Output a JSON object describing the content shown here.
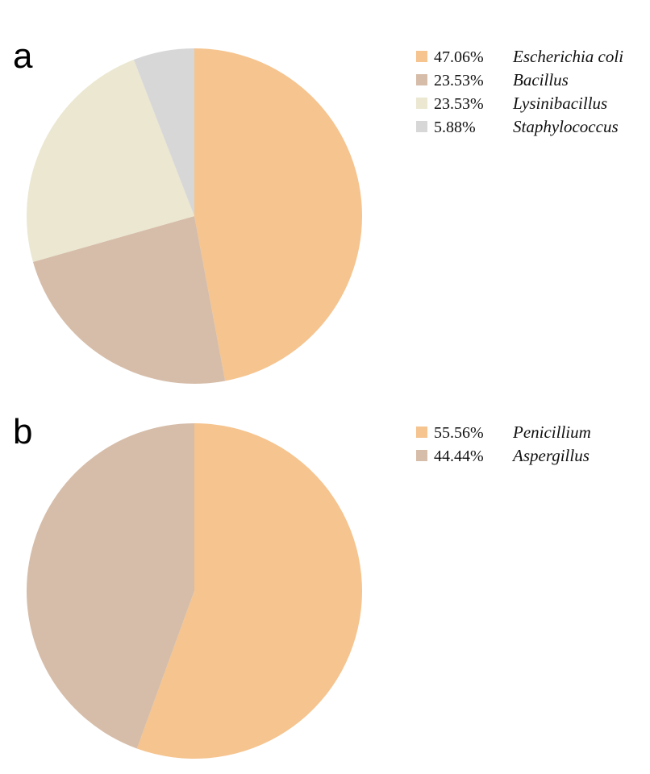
{
  "chart_data": [
    {
      "type": "pie",
      "panel": "a",
      "slices": [
        {
          "label": "Escherichia coli",
          "value": 47.06,
          "value_label": "47.06%",
          "color": "#f5c48f"
        },
        {
          "label": "Bacillus",
          "value": 23.53,
          "value_label": "23.53%",
          "color": "#d6bda9"
        },
        {
          "label": "Lysinibacillus",
          "value": 23.53,
          "value_label": "23.53%",
          "color": "#ebe7d1"
        },
        {
          "label": "Staphylococcus",
          "value": 5.88,
          "value_label": "5.88%",
          "color": "#d7d7d7"
        }
      ],
      "start_angle": "top",
      "direction": "clockwise",
      "legend_position": "top-right"
    },
    {
      "type": "pie",
      "panel": "b",
      "slices": [
        {
          "label": "Penicillium",
          "value": 55.56,
          "value_label": "55.56%",
          "color": "#f5c48f"
        },
        {
          "label": "Aspergillus",
          "value": 44.44,
          "value_label": "44.44%",
          "color": "#d6bda9"
        }
      ],
      "start_angle": "top",
      "direction": "clockwise",
      "legend_position": "top-right"
    }
  ]
}
